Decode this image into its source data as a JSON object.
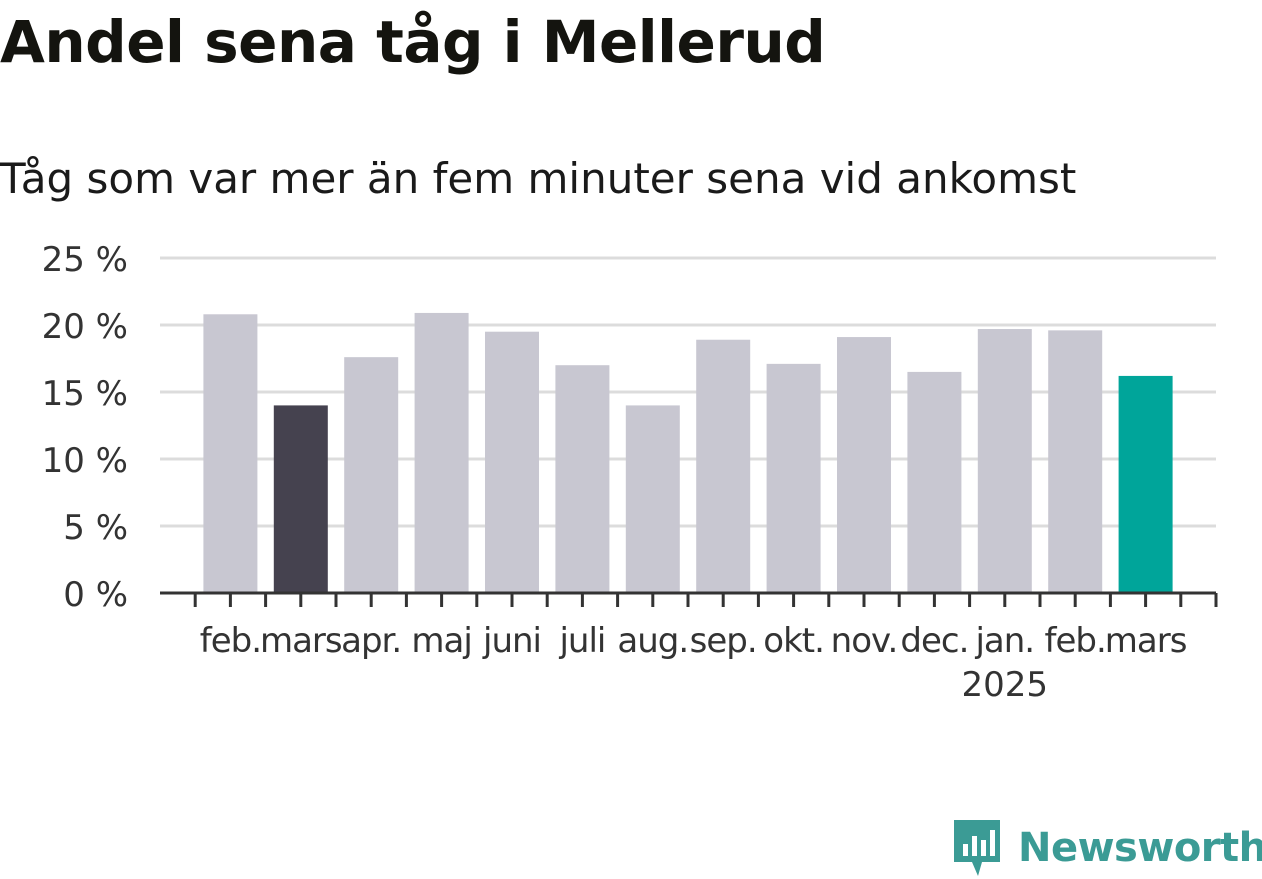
{
  "title": "Andel sena tåg i Mellerud",
  "subtitle": "Tåg som var mer än fem minuter sena vid ankomst",
  "brand": {
    "name": "Newsworthy"
  },
  "chart_data": {
    "type": "bar",
    "categories": [
      "feb.",
      "mars",
      "apr.",
      "maj",
      "juni",
      "juli",
      "aug.",
      "sep.",
      "okt.",
      "nov.",
      "dec.",
      "jan.",
      "feb.",
      "mars"
    ],
    "year_labels": {
      "11": "2025"
    },
    "values": [
      20.8,
      14.0,
      17.6,
      20.9,
      19.5,
      17.0,
      14.0,
      18.9,
      17.1,
      19.1,
      16.5,
      19.7,
      19.6,
      16.2
    ],
    "colors": [
      "#c8c7d1",
      "#45424f",
      "#c8c7d1",
      "#c8c7d1",
      "#c8c7d1",
      "#c8c7d1",
      "#c8c7d1",
      "#c8c7d1",
      "#c8c7d1",
      "#c8c7d1",
      "#c8c7d1",
      "#c8c7d1",
      "#c8c7d1",
      "#00a59a"
    ],
    "yticks": [
      "0 %",
      "5 %",
      "10 %",
      "15 %",
      "20 %",
      "25 %"
    ],
    "ytick_values": [
      0,
      5,
      10,
      15,
      20,
      25
    ],
    "ylim": [
      0,
      25
    ],
    "grid": true
  }
}
